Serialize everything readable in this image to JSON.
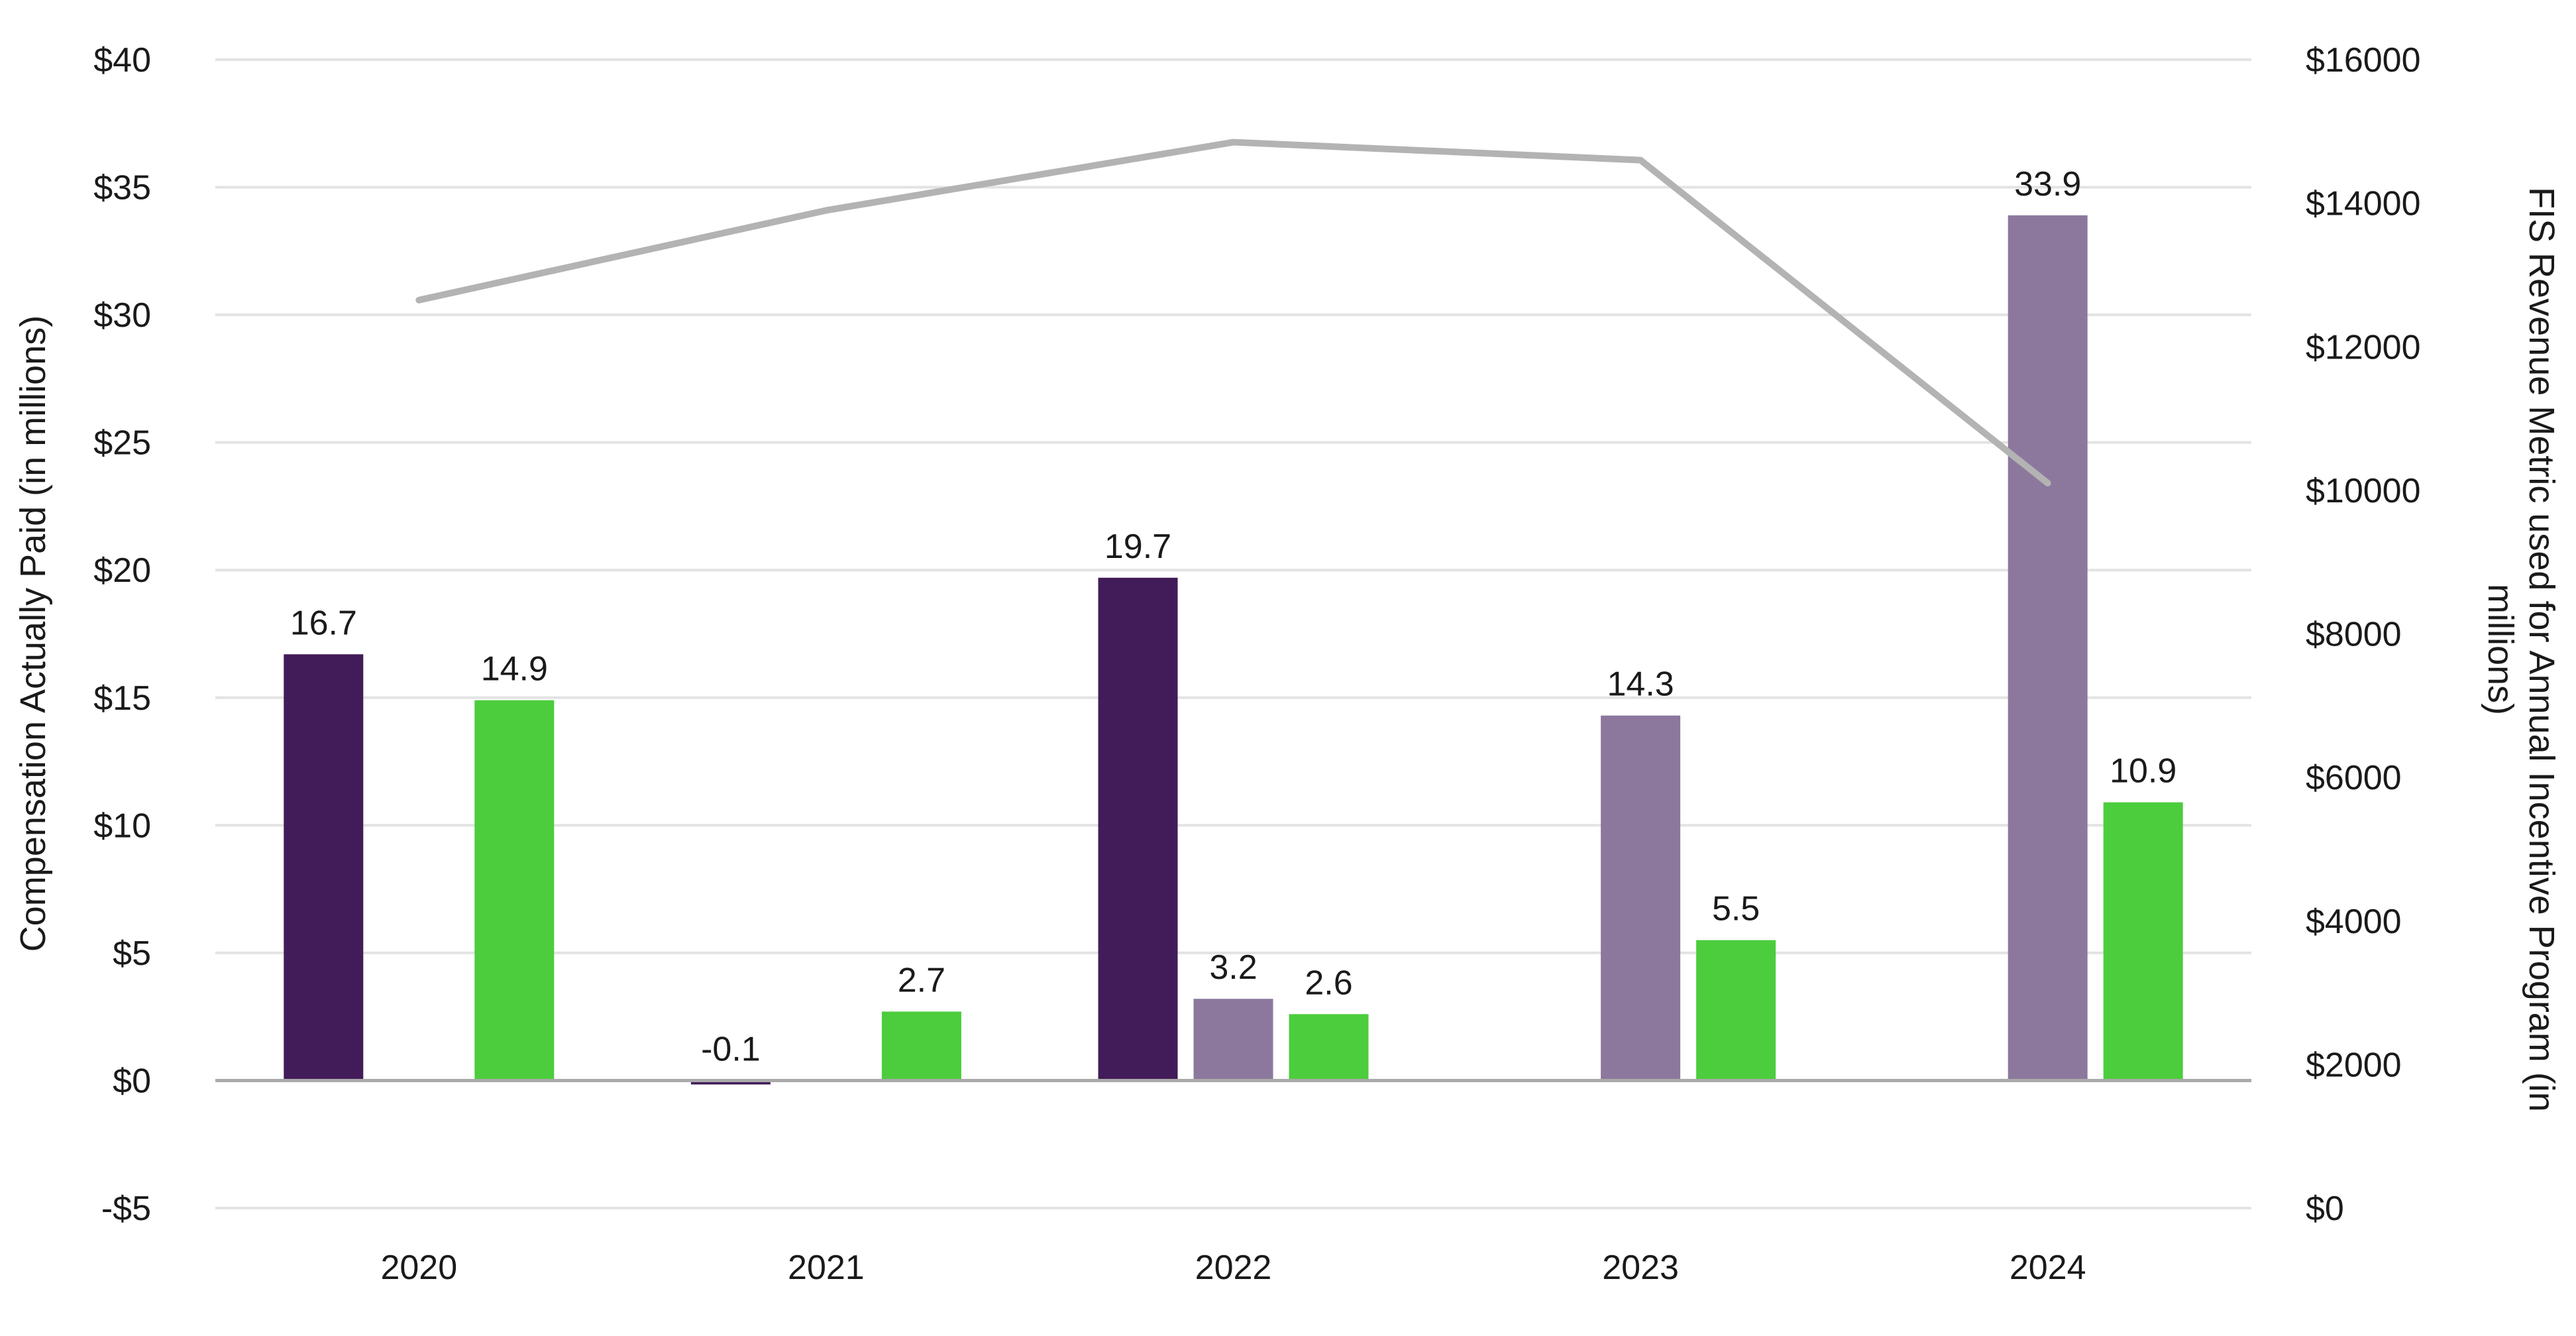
{
  "chart_data": {
    "type": "bar",
    "categories": [
      "2020",
      "2021",
      "2022",
      "2023",
      "2024"
    ],
    "series": [
      {
        "values": [
          16.7,
          -0.1,
          19.7,
          null,
          null
        ],
        "labels": [
          "16.7",
          "-0.1",
          "19.7",
          "",
          ""
        ],
        "color": "#421c59"
      },
      {
        "values": [
          null,
          null,
          3.2,
          14.3,
          33.9
        ],
        "labels": [
          "",
          "",
          "3.2",
          "14.3",
          "33.9"
        ],
        "color": "#8c789d"
      },
      {
        "values": [
          14.9,
          2.7,
          2.6,
          5.5,
          10.9
        ],
        "labels": [
          "14.9",
          "2.7",
          "2.6",
          "5.5",
          "10.9"
        ],
        "color": "#4ccd3d"
      }
    ],
    "line_series": {
      "axis": "right",
      "values": [
        12650,
        13900,
        14850,
        14600,
        10100
      ],
      "color": "#b3b3b3"
    },
    "y_left": {
      "label": "Compensation Actually Paid (in millions)",
      "min": -5,
      "max": 40,
      "ticks": [
        -5,
        0,
        5,
        10,
        15,
        20,
        25,
        30,
        35,
        40
      ],
      "tick_labels": [
        "-$5",
        "$0",
        "$5",
        "$10",
        "$15",
        "$20",
        "$25",
        "$30",
        "$35",
        "$40"
      ]
    },
    "y_right": {
      "label_line1": "FIS Revenue Metric used for Annual Incentive Program (in",
      "label_line2": "millions)",
      "min": 0,
      "max": 16000,
      "ticks": [
        0,
        2000,
        4000,
        6000,
        8000,
        10000,
        12000,
        14000,
        16000
      ],
      "tick_labels": [
        "$0",
        "$2000",
        "$4000",
        "$6000",
        "$8000",
        "$10000",
        "$12000",
        "$14000",
        "$16000"
      ]
    },
    "grid": true,
    "legend": "none"
  }
}
